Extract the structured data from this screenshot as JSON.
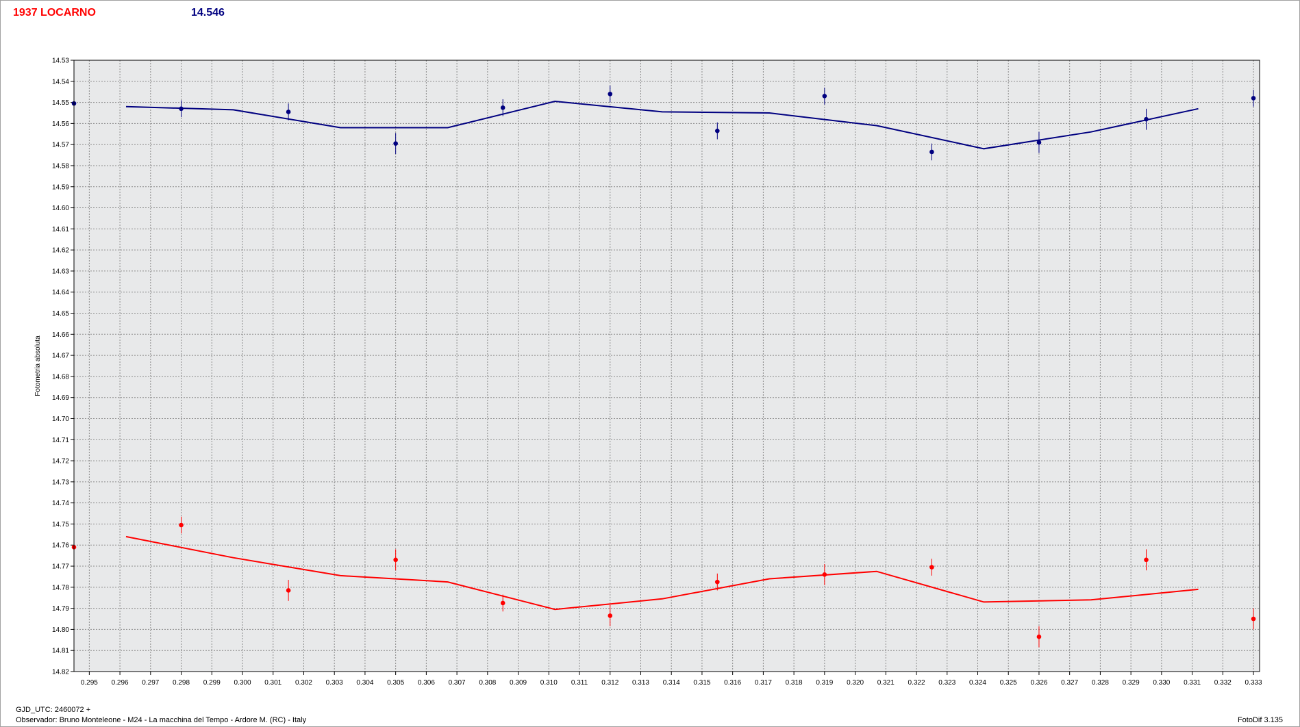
{
  "header": {
    "title": "1937 LOCARNO",
    "value": "14.546"
  },
  "footer": {
    "gjd": "GJD_UTC: 2460072 +",
    "observer": "Observador: Bruno Monteleone - M24 - La macchina del Tempo - Ardore M. (RC) - Italy",
    "version": "FotoDif 3.135"
  },
  "colors": {
    "series_blue": "#000080",
    "series_red": "#ff0000",
    "plot_background": "#e8e9ea",
    "grid": "#8a8a8a"
  },
  "chart_data": {
    "type": "scatter",
    "title": "",
    "xlabel": "",
    "ylabel": "Fotometria absoluta",
    "xlim": [
      0.2945,
      0.3332
    ],
    "ylim": [
      14.53,
      14.82
    ],
    "y_inverted": true,
    "grid": true,
    "x_ticks": [
      "0.295",
      "0.296",
      "0.297",
      "0.298",
      "0.299",
      "0.300",
      "0.301",
      "0.302",
      "0.303",
      "0.304",
      "0.305",
      "0.306",
      "0.307",
      "0.308",
      "0.309",
      "0.310",
      "0.311",
      "0.312",
      "0.313",
      "0.314",
      "0.315",
      "0.316",
      "0.317",
      "0.318",
      "0.319",
      "0.320",
      "0.321",
      "0.322",
      "0.323",
      "0.324",
      "0.325",
      "0.326",
      "0.327",
      "0.328",
      "0.329",
      "0.330",
      "0.331",
      "0.332",
      "0.333"
    ],
    "y_ticks": [
      "14.53",
      "14.54",
      "14.55",
      "14.56",
      "14.57",
      "14.58",
      "14.59",
      "14.60",
      "14.61",
      "14.62",
      "14.63",
      "14.64",
      "14.65",
      "14.66",
      "14.67",
      "14.68",
      "14.69",
      "14.70",
      "14.71",
      "14.72",
      "14.73",
      "14.74",
      "14.75",
      "14.76",
      "14.77",
      "14.78",
      "14.79",
      "14.80",
      "14.81",
      "14.82"
    ],
    "series": [
      {
        "color": "#000080",
        "points": [
          {
            "x": 0.2945,
            "y": 14.5505,
            "err": 0.004
          },
          {
            "x": 0.298,
            "y": 14.553,
            "err": 0.004
          },
          {
            "x": 0.3015,
            "y": 14.5545,
            "err": 0.004
          },
          {
            "x": 0.305,
            "y": 14.5695,
            "err": 0.005
          },
          {
            "x": 0.3085,
            "y": 14.5525,
            "err": 0.004
          },
          {
            "x": 0.312,
            "y": 14.546,
            "err": 0.004
          },
          {
            "x": 0.3155,
            "y": 14.5635,
            "err": 0.004
          },
          {
            "x": 0.319,
            "y": 14.547,
            "err": 0.004
          },
          {
            "x": 0.3225,
            "y": 14.5735,
            "err": 0.004
          },
          {
            "x": 0.326,
            "y": 14.569,
            "err": 0.005
          },
          {
            "x": 0.3295,
            "y": 14.558,
            "err": 0.005
          },
          {
            "x": 0.333,
            "y": 14.548,
            "err": 0.004
          }
        ],
        "fit": [
          {
            "x": 0.2962,
            "y": 14.552
          },
          {
            "x": 0.2997,
            "y": 14.5535
          },
          {
            "x": 0.3032,
            "y": 14.562
          },
          {
            "x": 0.3067,
            "y": 14.562
          },
          {
            "x": 0.3102,
            "y": 14.5495
          },
          {
            "x": 0.3137,
            "y": 14.5545
          },
          {
            "x": 0.3172,
            "y": 14.555
          },
          {
            "x": 0.3207,
            "y": 14.561
          },
          {
            "x": 0.3242,
            "y": 14.572
          },
          {
            "x": 0.3277,
            "y": 14.564
          },
          {
            "x": 0.3312,
            "y": 14.553
          }
        ]
      },
      {
        "color": "#ff0000",
        "points": [
          {
            "x": 0.2945,
            "y": 14.761,
            "err": 0.004
          },
          {
            "x": 0.298,
            "y": 14.7505,
            "err": 0.004
          },
          {
            "x": 0.3015,
            "y": 14.7815,
            "err": 0.005
          },
          {
            "x": 0.305,
            "y": 14.767,
            "err": 0.005
          },
          {
            "x": 0.3085,
            "y": 14.7875,
            "err": 0.004
          },
          {
            "x": 0.312,
            "y": 14.7935,
            "err": 0.005
          },
          {
            "x": 0.3155,
            "y": 14.7775,
            "err": 0.004
          },
          {
            "x": 0.319,
            "y": 14.774,
            "err": 0.005
          },
          {
            "x": 0.3225,
            "y": 14.7705,
            "err": 0.004
          },
          {
            "x": 0.326,
            "y": 14.8035,
            "err": 0.005
          },
          {
            "x": 0.3295,
            "y": 14.767,
            "err": 0.005
          },
          {
            "x": 0.333,
            "y": 14.795,
            "err": 0.005
          }
        ],
        "fit": [
          {
            "x": 0.2962,
            "y": 14.756
          },
          {
            "x": 0.2997,
            "y": 14.766
          },
          {
            "x": 0.3032,
            "y": 14.7745
          },
          {
            "x": 0.3067,
            "y": 14.7775
          },
          {
            "x": 0.3102,
            "y": 14.7905
          },
          {
            "x": 0.3137,
            "y": 14.7855
          },
          {
            "x": 0.3172,
            "y": 14.776
          },
          {
            "x": 0.3207,
            "y": 14.7725
          },
          {
            "x": 0.3242,
            "y": 14.787
          },
          {
            "x": 0.3277,
            "y": 14.786
          },
          {
            "x": 0.3312,
            "y": 14.781
          }
        ]
      }
    ]
  }
}
